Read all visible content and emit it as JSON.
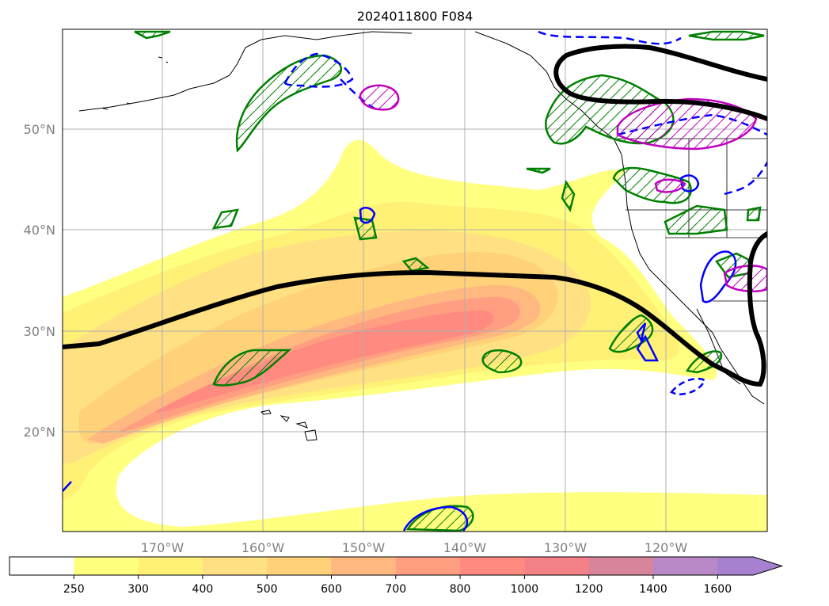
{
  "title": "2024011800 F084",
  "map": {
    "lon_range": [
      -180,
      -110
    ],
    "lat_range": [
      10,
      60
    ],
    "lon_grid": [
      -170,
      -160,
      -150,
      -140,
      -130,
      -120
    ],
    "lat_grid": [
      20,
      30,
      40,
      50
    ],
    "lon_labels": [
      "170°W",
      "160°W",
      "150°W",
      "140°W",
      "130°W",
      "120°W"
    ],
    "lat_labels": [
      "20°N",
      "30°N",
      "40°N",
      "50°N"
    ],
    "grid": true
  },
  "colorbar": {
    "levels": [
      "250",
      "300",
      "400",
      "500",
      "600",
      "700",
      "800",
      "1000",
      "1200",
      "1400",
      "1600"
    ],
    "colors": [
      "#ffffff",
      "#ffff80",
      "#fff176",
      "#ffe082",
      "#ffd27a",
      "#ffb880",
      "#ff9e80",
      "#ff8a80",
      "#f48088",
      "#d8849a",
      "#b888c8",
      "#a880d0"
    ],
    "extend": "max"
  },
  "colors": {
    "jet_axis": "#000000",
    "green_contour": "#008000",
    "blue_contour": "#0000ff",
    "magenta_contour": "#c000c0",
    "grid": "#b0b0b0",
    "coast": "#000000"
  }
}
